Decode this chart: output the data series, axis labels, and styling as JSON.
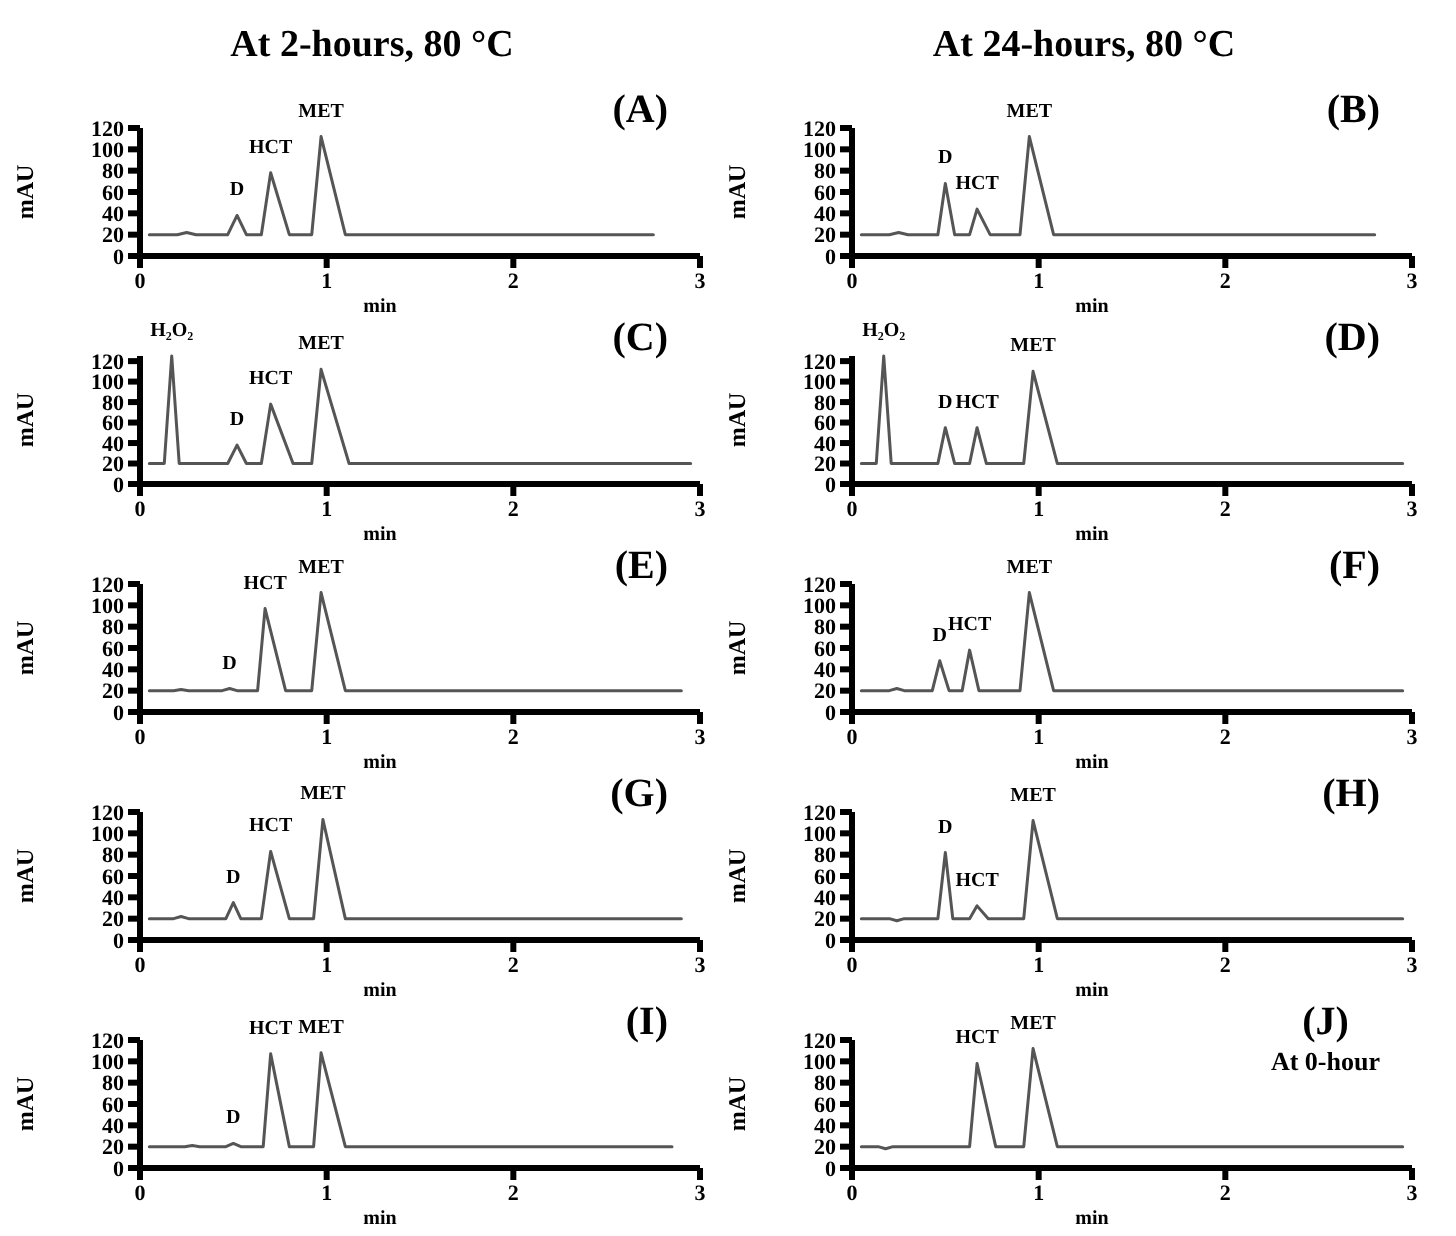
{
  "chart_data": [
    {
      "type": "line",
      "title": "At 2-hours, 80 °C",
      "xlabel": "min",
      "ylabel": "mAU",
      "color": "#555555",
      "xlim": [
        0,
        3
      ],
      "xticks": [
        0,
        1,
        2,
        3
      ],
      "ylim": [
        0,
        120
      ],
      "yticks": [
        0,
        20,
        40,
        60,
        80,
        100,
        120
      ],
      "x": [
        0.05,
        0.2,
        0.25,
        0.3,
        0.47,
        0.52,
        0.57,
        0.65,
        0.7,
        0.8,
        0.92,
        0.97,
        1.1,
        2.75
      ],
      "values": [
        20,
        20,
        22,
        20,
        20,
        38,
        20,
        20,
        78,
        20,
        20,
        112,
        20,
        20
      ],
      "annotations": [
        "(A)",
        {
          "text": "D",
          "x": 0.52,
          "y": 38
        },
        {
          "text": "HCT",
          "x": 0.7,
          "y": 78
        },
        {
          "text": "MET",
          "x": 0.97,
          "y": 112
        }
      ]
    },
    {
      "type": "line",
      "title": "At 24-hours, 80 °C",
      "xlabel": "min",
      "ylabel": "mAU",
      "color": "#555555",
      "xlim": [
        0,
        3
      ],
      "xticks": [
        0,
        1,
        2,
        3
      ],
      "ylim": [
        0,
        120
      ],
      "yticks": [
        0,
        20,
        40,
        60,
        80,
        100,
        120
      ],
      "x": [
        0.05,
        0.2,
        0.25,
        0.3,
        0.46,
        0.5,
        0.55,
        0.63,
        0.67,
        0.74,
        0.9,
        0.95,
        1.08,
        2.8
      ],
      "values": [
        20,
        20,
        22,
        20,
        20,
        68,
        20,
        20,
        44,
        20,
        20,
        112,
        20,
        20
      ],
      "annotations": [
        "(B)",
        {
          "text": "D",
          "x": 0.5,
          "y": 68
        },
        {
          "text": "HCT",
          "x": 0.67,
          "y": 44
        },
        {
          "text": "MET",
          "x": 0.95,
          "y": 112
        }
      ]
    },
    {
      "type": "line",
      "xlabel": "min",
      "ylabel": "mAU",
      "color": "#555555",
      "xlim": [
        0,
        3
      ],
      "xticks": [
        0,
        1,
        2,
        3
      ],
      "ylim": [
        0,
        125
      ],
      "yticks": [
        0,
        20,
        40,
        60,
        80,
        100,
        120
      ],
      "x": [
        0.05,
        0.13,
        0.17,
        0.21,
        0.25,
        0.47,
        0.52,
        0.57,
        0.65,
        0.7,
        0.82,
        0.92,
        0.97,
        1.12,
        2.95
      ],
      "values": [
        20,
        20,
        125,
        20,
        20,
        20,
        38,
        20,
        20,
        78,
        20,
        20,
        112,
        20,
        20
      ],
      "annotations": [
        "(C)",
        {
          "text": "H₂O₂",
          "x": 0.17,
          "y": 125
        },
        {
          "text": "D",
          "x": 0.52,
          "y": 38
        },
        {
          "text": "HCT",
          "x": 0.7,
          "y": 78
        },
        {
          "text": "MET",
          "x": 0.97,
          "y": 112
        }
      ]
    },
    {
      "type": "line",
      "xlabel": "min",
      "ylabel": "mAU",
      "color": "#555555",
      "xlim": [
        0,
        3
      ],
      "xticks": [
        0,
        1,
        2,
        3
      ],
      "ylim": [
        0,
        125
      ],
      "yticks": [
        0,
        20,
        40,
        60,
        80,
        100,
        120
      ],
      "x": [
        0.05,
        0.13,
        0.17,
        0.21,
        0.25,
        0.46,
        0.5,
        0.55,
        0.63,
        0.67,
        0.72,
        0.92,
        0.97,
        1.1,
        2.95
      ],
      "values": [
        20,
        20,
        125,
        20,
        20,
        20,
        55,
        20,
        20,
        55,
        20,
        20,
        110,
        20,
        20
      ],
      "annotations": [
        "(D)",
        {
          "text": "H₂O₂",
          "x": 0.17,
          "y": 125
        },
        {
          "text": "D",
          "x": 0.5,
          "y": 55
        },
        {
          "text": "HCT",
          "x": 0.67,
          "y": 55
        },
        {
          "text": "MET",
          "x": 0.97,
          "y": 110
        }
      ]
    },
    {
      "type": "line",
      "xlabel": "min",
      "ylabel": "mAU",
      "color": "#555555",
      "xlim": [
        0,
        3
      ],
      "xticks": [
        0,
        1,
        2,
        3
      ],
      "ylim": [
        0,
        120
      ],
      "yticks": [
        0,
        20,
        40,
        60,
        80,
        100,
        120
      ],
      "x": [
        0.05,
        0.18,
        0.22,
        0.26,
        0.44,
        0.48,
        0.52,
        0.63,
        0.67,
        0.78,
        0.92,
        0.97,
        1.1,
        2.9
      ],
      "values": [
        20,
        20,
        21,
        20,
        20,
        22,
        20,
        20,
        97,
        20,
        20,
        112,
        20,
        20
      ],
      "annotations": [
        "(E)",
        {
          "text": "D",
          "x": 0.48,
          "y": 22
        },
        {
          "text": "HCT",
          "x": 0.67,
          "y": 97
        },
        {
          "text": "MET",
          "x": 0.97,
          "y": 112
        }
      ]
    },
    {
      "type": "line",
      "xlabel": "min",
      "ylabel": "mAU",
      "color": "#555555",
      "xlim": [
        0,
        3
      ],
      "xticks": [
        0,
        1,
        2,
        3
      ],
      "ylim": [
        0,
        120
      ],
      "yticks": [
        0,
        20,
        40,
        60,
        80,
        100,
        120
      ],
      "x": [
        0.05,
        0.2,
        0.24,
        0.28,
        0.43,
        0.47,
        0.52,
        0.59,
        0.63,
        0.68,
        0.9,
        0.95,
        1.08,
        2.95
      ],
      "values": [
        20,
        20,
        22,
        20,
        20,
        48,
        20,
        20,
        58,
        20,
        20,
        112,
        20,
        20
      ],
      "annotations": [
        "(F)",
        {
          "text": "D",
          "x": 0.47,
          "y": 48
        },
        {
          "text": "HCT",
          "x": 0.63,
          "y": 58
        },
        {
          "text": "MET",
          "x": 0.95,
          "y": 112
        }
      ]
    },
    {
      "type": "line",
      "xlabel": "min",
      "ylabel": "mAU",
      "color": "#555555",
      "xlim": [
        0,
        3
      ],
      "xticks": [
        0,
        1,
        2,
        3
      ],
      "ylim": [
        0,
        120
      ],
      "yticks": [
        0,
        20,
        40,
        60,
        80,
        100,
        120
      ],
      "x": [
        0.05,
        0.18,
        0.22,
        0.26,
        0.46,
        0.5,
        0.54,
        0.65,
        0.7,
        0.8,
        0.93,
        0.98,
        1.1,
        2.9
      ],
      "values": [
        20,
        20,
        22,
        20,
        20,
        35,
        20,
        20,
        83,
        20,
        20,
        113,
        20,
        20
      ],
      "annotations": [
        "(G)",
        {
          "text": "D",
          "x": 0.5,
          "y": 35
        },
        {
          "text": "HCT",
          "x": 0.7,
          "y": 83
        },
        {
          "text": "MET",
          "x": 0.98,
          "y": 113
        }
      ]
    },
    {
      "type": "line",
      "xlabel": "min",
      "ylabel": "mAU",
      "color": "#555555",
      "xlim": [
        0,
        3
      ],
      "xticks": [
        0,
        1,
        2,
        3
      ],
      "ylim": [
        0,
        120
      ],
      "yticks": [
        0,
        20,
        40,
        60,
        80,
        100,
        120
      ],
      "x": [
        0.05,
        0.2,
        0.24,
        0.28,
        0.46,
        0.5,
        0.54,
        0.63,
        0.67,
        0.73,
        0.92,
        0.97,
        1.1,
        2.95
      ],
      "values": [
        20,
        20,
        18,
        20,
        20,
        82,
        20,
        20,
        32,
        20,
        20,
        112,
        20,
        20
      ],
      "annotations": [
        "(H)",
        {
          "text": "D",
          "x": 0.5,
          "y": 82
        },
        {
          "text": "HCT",
          "x": 0.67,
          "y": 32
        },
        {
          "text": "MET",
          "x": 0.97,
          "y": 112
        }
      ]
    },
    {
      "type": "line",
      "xlabel": "min",
      "ylabel": "mAU",
      "color": "#555555",
      "xlim": [
        0,
        3
      ],
      "xticks": [
        0,
        1,
        2,
        3
      ],
      "ylim": [
        0,
        120
      ],
      "yticks": [
        0,
        20,
        40,
        60,
        80,
        100,
        120
      ],
      "x": [
        0.05,
        0.24,
        0.28,
        0.32,
        0.46,
        0.5,
        0.54,
        0.66,
        0.7,
        0.8,
        0.93,
        0.97,
        1.1,
        2.85
      ],
      "values": [
        20,
        20,
        21,
        20,
        20,
        23,
        20,
        20,
        107,
        20,
        20,
        108,
        20,
        20
      ],
      "annotations": [
        "(I)",
        {
          "text": "D",
          "x": 0.5,
          "y": 23
        },
        {
          "text": "HCT",
          "x": 0.7,
          "y": 107
        },
        {
          "text": "MET",
          "x": 0.97,
          "y": 108
        }
      ]
    },
    {
      "type": "line",
      "xlabel": "min",
      "ylabel": "mAU",
      "color": "#555555",
      "xlim": [
        0,
        3
      ],
      "xticks": [
        0,
        1,
        2,
        3
      ],
      "ylim": [
        0,
        120
      ],
      "yticks": [
        0,
        20,
        40,
        60,
        80,
        100,
        120
      ],
      "x": [
        0.05,
        0.14,
        0.18,
        0.22,
        0.63,
        0.67,
        0.77,
        0.92,
        0.97,
        1.1,
        2.95
      ],
      "values": [
        20,
        20,
        18,
        20,
        20,
        98,
        20,
        20,
        112,
        20,
        20
      ],
      "annotations": [
        "(J)",
        "At 0-hour",
        {
          "text": "HCT",
          "x": 0.67,
          "y": 98
        },
        {
          "text": "MET",
          "x": 0.97,
          "y": 112
        }
      ]
    }
  ]
}
